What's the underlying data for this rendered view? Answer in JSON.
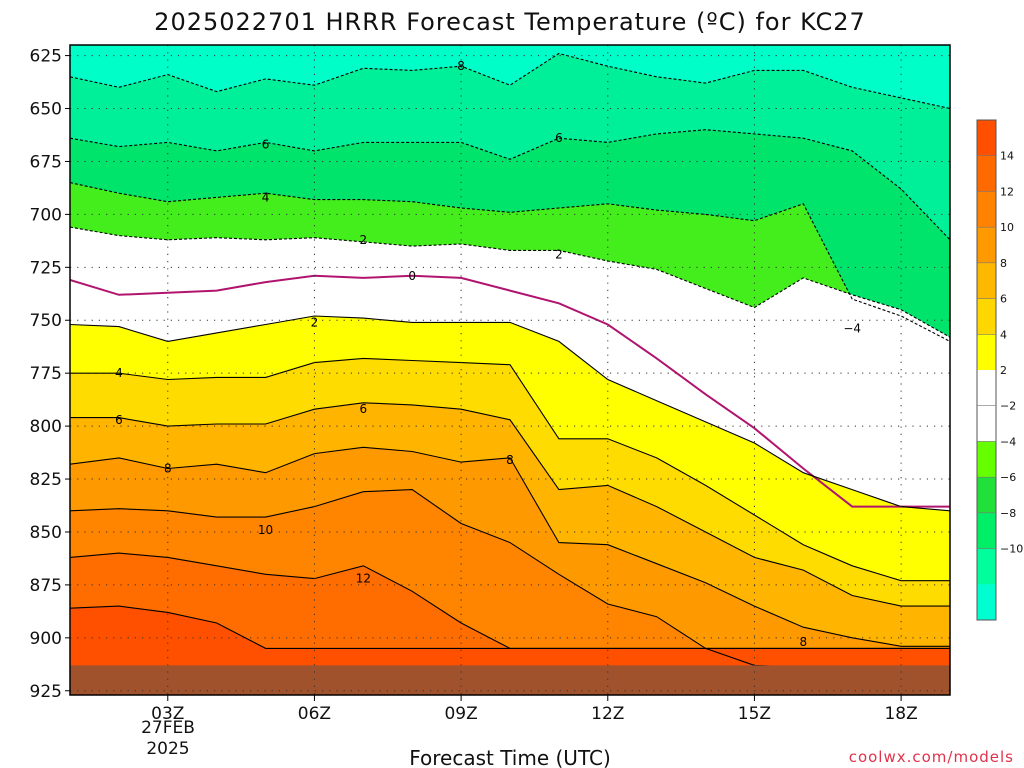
{
  "chart_data": {
    "type": "heatmap",
    "title": "2025022701 HRRR Forecast Temperature (ºC) for KC27",
    "xlabel": "Forecast Time (UTC)",
    "ylabel": "",
    "x_tick_labels": [
      "03Z",
      "06Z",
      "09Z",
      "12Z",
      "15Z",
      "18Z"
    ],
    "x_date_label": [
      "27FEB",
      "2025"
    ],
    "y_axis_inverted": true,
    "y_ticks": [
      625,
      650,
      675,
      700,
      725,
      750,
      775,
      800,
      825,
      850,
      875,
      900,
      925
    ],
    "y_tick_labels": [
      "625",
      "650",
      "675",
      "700",
      "725",
      "750",
      "775",
      "800",
      "825",
      "850",
      "875",
      "900",
      "925"
    ],
    "xlim_hours_z": [
      1,
      19
    ],
    "ylim": [
      620,
      927
    ],
    "grid": true,
    "colorbar": {
      "boundaries": [
        -12,
        -10,
        -8,
        -6,
        -4,
        -2,
        0,
        2,
        4,
        6,
        8,
        10,
        12,
        14,
        16
      ],
      "colors": [
        "#00ffd0",
        "#00ff9c",
        "#00ef66",
        "#22e03a",
        "#66ff00",
        "#ffffff",
        "#ffffff",
        "#ffff00",
        "#ffd700",
        "#ffb800",
        "#ff9900",
        "#ff8200",
        "#ff6a00",
        "#ff4f00"
      ],
      "tick_labels": [
        "14",
        "12",
        "10",
        "8",
        "6",
        "4",
        "2",
        "−2",
        "−4",
        "−6",
        "−8",
        "−10"
      ]
    },
    "contours": [
      {
        "level": 8,
        "hours": [
          1,
          2,
          3,
          4,
          5,
          6,
          7,
          8,
          9,
          10,
          11,
          12,
          13,
          14,
          15,
          16,
          17,
          18,
          19
        ],
        "pressure": [
          635,
          640,
          634,
          642,
          636,
          639,
          631,
          632,
          630,
          639,
          624,
          630,
          635,
          638,
          632,
          632,
          640,
          645,
          650
        ]
      },
      {
        "level": 6,
        "hours": [
          1,
          2,
          3,
          4,
          5,
          6,
          7,
          8,
          9,
          10,
          11,
          12,
          13,
          14,
          15,
          16,
          17,
          18,
          19
        ],
        "pressure": [
          664,
          668,
          666,
          670,
          666,
          670,
          666,
          666,
          666,
          674,
          664,
          666,
          662,
          660,
          662,
          664,
          670,
          688,
          712
        ]
      },
      {
        "level": 4,
        "hours": [
          1,
          2,
          3,
          4,
          5,
          6,
          7,
          8,
          9,
          10,
          11,
          12,
          13,
          14,
          15,
          16,
          17,
          18,
          19
        ],
        "pressure": [
          685,
          690,
          694,
          692,
          690,
          693,
          693,
          694,
          697,
          699,
          697,
          695,
          698,
          700,
          703,
          695,
          740,
          748,
          760
        ]
      },
      {
        "level": 2,
        "hours": [
          1,
          2,
          3,
          4,
          5,
          6,
          7,
          8,
          9,
          10,
          11,
          12,
          13,
          14,
          15,
          16,
          17,
          18,
          19
        ],
        "pressure": [
          706,
          710,
          712,
          711,
          712,
          711,
          713,
          715,
          714,
          717,
          717,
          722,
          726,
          735,
          744,
          730,
          738,
          745,
          758
        ]
      },
      {
        "level": 0,
        "hours": [
          1,
          2,
          3,
          4,
          5,
          6,
          7,
          8,
          9,
          10,
          11,
          12,
          13,
          14,
          15,
          16,
          17,
          18,
          19
        ],
        "pressure": [
          731,
          738,
          737,
          736,
          732,
          729,
          730,
          729,
          730,
          736,
          742,
          752,
          768,
          785,
          801,
          820,
          838,
          838,
          838
        ]
      },
      {
        "level": 2,
        "hours": [
          1,
          2,
          3,
          4,
          5,
          6,
          7,
          8,
          9,
          10,
          11,
          12,
          13,
          14,
          15,
          16,
          17,
          18,
          19
        ],
        "pressure": [
          752,
          753,
          760,
          756,
          752,
          748,
          749,
          751,
          751,
          751,
          760,
          778,
          788,
          798,
          808,
          822,
          830,
          838,
          840
        ]
      },
      {
        "level": 4,
        "hours": [
          1,
          2,
          3,
          4,
          5,
          6,
          7,
          8,
          9,
          10,
          11,
          12,
          13,
          14,
          15,
          16,
          17,
          18,
          19
        ],
        "pressure": [
          775,
          775,
          778,
          777,
          777,
          770,
          768,
          769,
          770,
          771,
          806,
          806,
          815,
          828,
          842,
          856,
          866,
          873,
          873
        ]
      },
      {
        "level": 6,
        "hours": [
          1,
          2,
          3,
          4,
          5,
          6,
          7,
          8,
          9,
          10,
          11,
          12,
          13,
          14,
          15,
          16,
          17,
          18,
          19
        ],
        "pressure": [
          796,
          796,
          800,
          799,
          799,
          792,
          789,
          790,
          792,
          797,
          830,
          828,
          838,
          850,
          862,
          868,
          880,
          885,
          885
        ]
      },
      {
        "level": 8,
        "hours": [
          1,
          2,
          3,
          4,
          5,
          6,
          7,
          8,
          9,
          10,
          11,
          12,
          13,
          14,
          15,
          16,
          17,
          18,
          19
        ],
        "pressure": [
          818,
          815,
          820,
          818,
          822,
          813,
          810,
          812,
          817,
          815,
          855,
          856,
          865,
          874,
          885,
          895,
          900,
          904,
          904
        ]
      },
      {
        "level": 10,
        "hours": [
          1,
          2,
          3,
          4,
          5,
          6,
          7,
          8,
          9,
          10,
          11,
          12,
          13,
          14,
          15,
          16,
          17,
          18,
          19
        ],
        "pressure": [
          840,
          839,
          840,
          843,
          843,
          838,
          831,
          830,
          846,
          855,
          870,
          884,
          890,
          905,
          913,
          914,
          914,
          914,
          914
        ]
      },
      {
        "level": 12,
        "hours": [
          1,
          2,
          3,
          4,
          5,
          6,
          7,
          8,
          9,
          10,
          11,
          12,
          13,
          14,
          15,
          16,
          17,
          18,
          19
        ],
        "pressure": [
          862,
          860,
          862,
          866,
          870,
          872,
          866,
          878,
          893,
          905,
          905,
          905,
          905,
          905,
          905,
          905,
          905,
          905,
          905
        ]
      },
      {
        "level": 14,
        "hours": [
          1,
          2,
          3,
          4,
          5,
          6,
          7,
          8,
          9,
          10,
          11,
          12,
          13,
          14,
          15,
          16,
          17,
          18,
          19
        ],
        "pressure": [
          886,
          885,
          888,
          893,
          905,
          905,
          905,
          905,
          905,
          905,
          905,
          905,
          905,
          905,
          905,
          905,
          905,
          905,
          905
        ]
      }
    ],
    "contour_labels": [
      {
        "text": "8",
        "hour": 9.0,
        "pressure": 630
      },
      {
        "text": "6",
        "hour": 5.0,
        "pressure": 667
      },
      {
        "text": "6",
        "hour": 11.0,
        "pressure": 664
      },
      {
        "text": "4",
        "hour": 5.0,
        "pressure": 692
      },
      {
        "text": "2",
        "hour": 7.0,
        "pressure": 712
      },
      {
        "text": "2",
        "hour": 11.0,
        "pressure": 719
      },
      {
        "text": "0",
        "hour": 8.0,
        "pressure": 729
      },
      {
        "text": "2",
        "hour": 6.0,
        "pressure": 751
      },
      {
        "text": "−4",
        "hour": 17.0,
        "pressure": 754
      },
      {
        "text": "4",
        "hour": 2.0,
        "pressure": 775
      },
      {
        "text": "6",
        "hour": 2.0,
        "pressure": 797
      },
      {
        "text": "6",
        "hour": 7.0,
        "pressure": 792
      },
      {
        "text": "8",
        "hour": 3.0,
        "pressure": 820
      },
      {
        "text": "8",
        "hour": 10.0,
        "pressure": 816
      },
      {
        "text": "10",
        "hour": 5.0,
        "pressure": 849
      },
      {
        "text": "12",
        "hour": 7.0,
        "pressure": 872
      },
      {
        "text": "8",
        "hour": 16.0,
        "pressure": 902
      }
    ],
    "surface_pressure": 913
  },
  "watermark": "coolwx.com/models"
}
